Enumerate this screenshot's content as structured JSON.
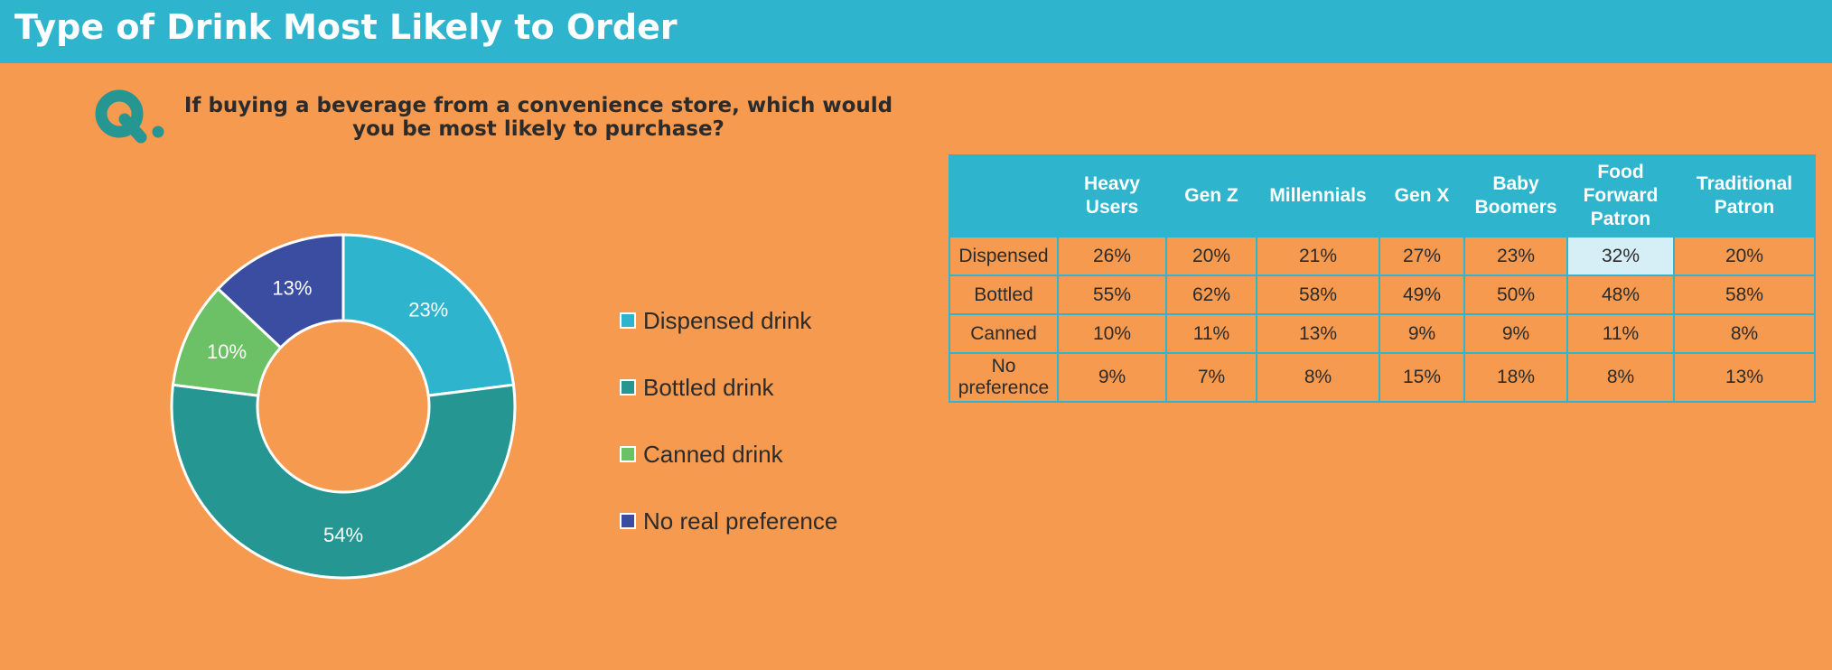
{
  "header": {
    "title": "Type of Drink Most Likely to Order"
  },
  "question": {
    "icon": "q-letter-icon",
    "text": "If buying a beverage from a convenience store, which would you be most likely to purchase?"
  },
  "colors": {
    "background": "#F69A4F",
    "header": "#2EB4CC",
    "dispensed": "#2EB4CC",
    "bottled": "#259691",
    "canned": "#6CC065",
    "no_preference": "#3B4DA0",
    "highlight_cell": "#D6EEF6"
  },
  "chart_data": [
    {
      "type": "pie",
      "donut": true,
      "categories": [
        "Dispensed drink",
        "Bottled drink",
        "Canned drink",
        "No real preference"
      ],
      "values": [
        23,
        54,
        10,
        13
      ],
      "labels": [
        "23%",
        "54%",
        "10%",
        "13%"
      ],
      "colors": [
        "#2EB4CC",
        "#259691",
        "#6CC065",
        "#3B4DA0"
      ],
      "legend_position": "right"
    },
    {
      "type": "table",
      "columns": [
        "",
        "Heavy Users",
        "Gen Z",
        "Millennials",
        "Gen X",
        "Baby Boomers",
        "Food Forward Patron",
        "Traditional Patron"
      ],
      "rows": [
        {
          "label": "Dispensed",
          "values": [
            "26%",
            "20%",
            "21%",
            "27%",
            "23%",
            "32%",
            "20%"
          ]
        },
        {
          "label": "Bottled",
          "values": [
            "55%",
            "62%",
            "58%",
            "49%",
            "50%",
            "48%",
            "58%"
          ]
        },
        {
          "label": "Canned",
          "values": [
            "10%",
            "11%",
            "13%",
            "9%",
            "9%",
            "11%",
            "8%"
          ]
        },
        {
          "label": "No preference",
          "values": [
            "9%",
            "7%",
            "8%",
            "15%",
            "18%",
            "8%",
            "13%"
          ]
        }
      ],
      "highlighted_cell": {
        "row": 0,
        "col": 5
      }
    }
  ]
}
